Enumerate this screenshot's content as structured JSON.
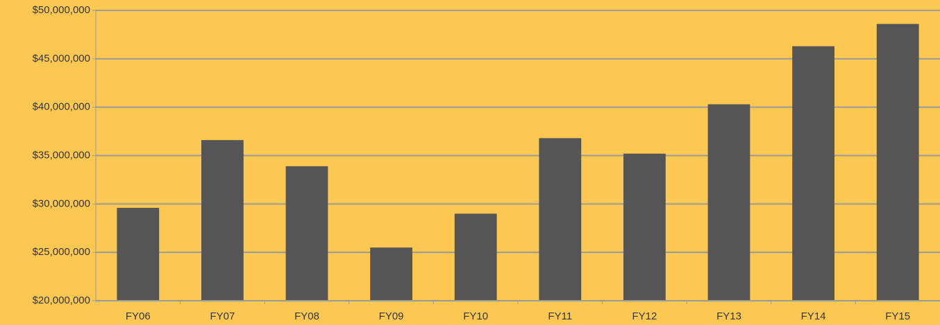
{
  "chart_data": {
    "type": "bar",
    "categories": [
      "FY06",
      "FY07",
      "FY08",
      "FY09",
      "FY10",
      "FY11",
      "FY12",
      "FY13",
      "FY14",
      "FY15"
    ],
    "values": [
      29600000,
      36600000,
      33900000,
      25500000,
      29000000,
      36800000,
      35200000,
      40300000,
      46300000,
      48600000
    ],
    "color": "#555555",
    "ylim": [
      20000000,
      50000000
    ],
    "yticks": [
      {
        "value": 20000000,
        "label": "$20,000,000"
      },
      {
        "value": 25000000,
        "label": "$25,000,000"
      },
      {
        "value": 30000000,
        "label": "$30,000,000"
      },
      {
        "value": 35000000,
        "label": "$35,000,000"
      },
      {
        "value": 40000000,
        "label": "$40,000,000"
      },
      {
        "value": 45000000,
        "label": "$45,000,000"
      },
      {
        "value": 50000000,
        "label": "$50,000,000"
      }
    ],
    "grid": true
  }
}
